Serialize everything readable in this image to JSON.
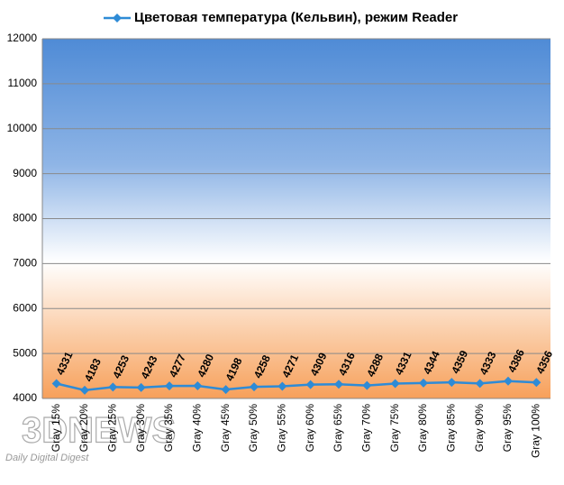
{
  "chart_data": {
    "type": "line",
    "categories": [
      "Gray 15%",
      "Gray 20%",
      "Gray 25%",
      "Gray 30%",
      "Gray 35%",
      "Gray 40%",
      "Gray 45%",
      "Gray 50%",
      "Gray 55%",
      "Gray 60%",
      "Gray 65%",
      "Gray 70%",
      "Gray 75%",
      "Gray 80%",
      "Gray 85%",
      "Gray 90%",
      "Gray 95%",
      "Gray 100%"
    ],
    "series": [
      {
        "name": "Цветовая температура (Кельвин), режим Reader",
        "color": "#2e8bd6",
        "values": [
          4331,
          4183,
          4253,
          4243,
          4277,
          4280,
          4198,
          4258,
          4271,
          4309,
          4316,
          4288,
          4331,
          4344,
          4359,
          4333,
          4386,
          4356
        ]
      }
    ],
    "ylim": [
      4000,
      12000
    ],
    "yticks": [
      4000,
      5000,
      6000,
      7000,
      8000,
      9000,
      10000,
      11000,
      12000
    ],
    "grid": true,
    "legend": "top",
    "watermark": "3DNEWS",
    "watermark_sub": "Daily Digital Digest"
  }
}
